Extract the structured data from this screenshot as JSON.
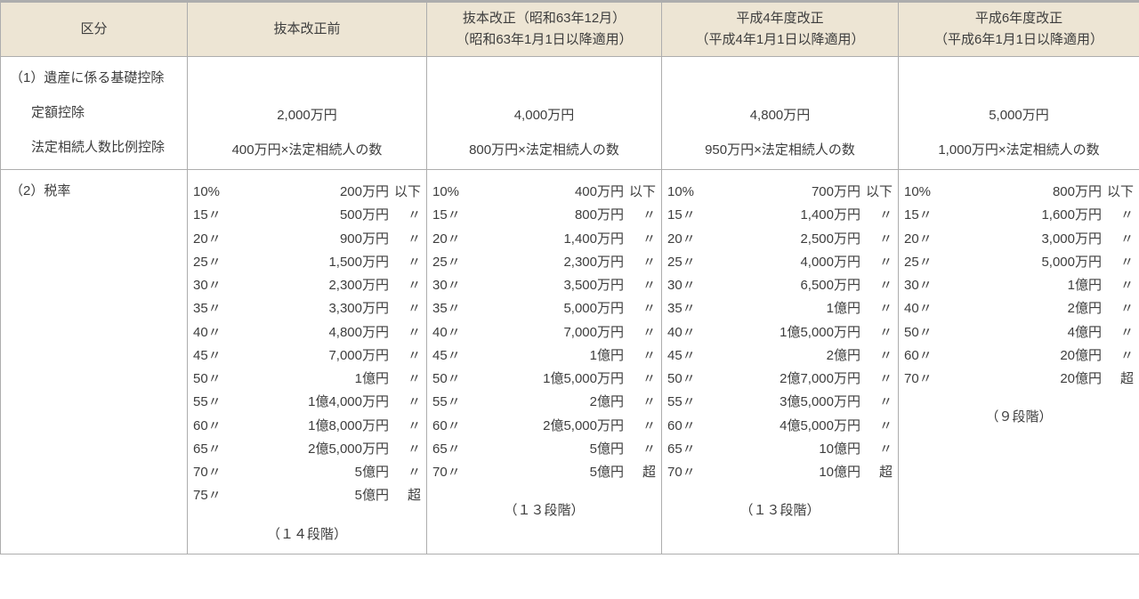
{
  "colors": {
    "header_bg": "#ede5d4",
    "border": "#adadad",
    "text": "#3d3d3d",
    "bg": "#ffffff"
  },
  "fontsize_pt": 15,
  "headers": {
    "col0": "区分",
    "col1": "抜本改正前",
    "col2_line1": "抜本改正（昭和63年12月）",
    "col2_line2": "（昭和63年1月1日以降適用）",
    "col3_line1": "平成4年度改正",
    "col3_line2": "（平成4年1月1日以降適用）",
    "col4_line1": "平成6年度改正",
    "col4_line2": "（平成6年1月1日以降適用）"
  },
  "row1": {
    "section": "（1）遺産に係る基礎控除",
    "sub1": "定額控除",
    "sub2": "法定相続人数比例控除",
    "v_fixed": {
      "c1": "2,000万円",
      "c2": "4,000万円",
      "c3": "4,800万円",
      "c4": "5,000万円"
    },
    "v_prop": {
      "c1": "400万円×法定相続人の数",
      "c2": "800万円×法定相続人の数",
      "c3": "950万円×法定相続人の数",
      "c4": "1,000万円×法定相続人の数"
    }
  },
  "row2": {
    "section": "（2）税率",
    "stages": {
      "c1": "（１４段階）",
      "c2": "（１３段階）",
      "c3": "（１３段階）",
      "c4": "（９段階）"
    },
    "brackets": {
      "c1": [
        {
          "p": "10%",
          "t": "200万円",
          "s": "以下"
        },
        {
          "p": "15〃",
          "t": "500万円",
          "s": "〃"
        },
        {
          "p": "20〃",
          "t": "900万円",
          "s": "〃"
        },
        {
          "p": "25〃",
          "t": "1,500万円",
          "s": "〃"
        },
        {
          "p": "30〃",
          "t": "2,300万円",
          "s": "〃"
        },
        {
          "p": "35〃",
          "t": "3,300万円",
          "s": "〃"
        },
        {
          "p": "40〃",
          "t": "4,800万円",
          "s": "〃"
        },
        {
          "p": "45〃",
          "t": "7,000万円",
          "s": "〃"
        },
        {
          "p": "50〃",
          "t": "1億円",
          "s": "〃"
        },
        {
          "p": "55〃",
          "t": "1億4,000万円",
          "s": "〃"
        },
        {
          "p": "60〃",
          "t": "1億8,000万円",
          "s": "〃"
        },
        {
          "p": "65〃",
          "t": "2億5,000万円",
          "s": "〃"
        },
        {
          "p": "70〃",
          "t": "5億円",
          "s": "〃"
        },
        {
          "p": "75〃",
          "t": "5億円",
          "s": "超"
        }
      ],
      "c2": [
        {
          "p": "10%",
          "t": "400万円",
          "s": "以下"
        },
        {
          "p": "15〃",
          "t": "800万円",
          "s": "〃"
        },
        {
          "p": "20〃",
          "t": "1,400万円",
          "s": "〃"
        },
        {
          "p": "25〃",
          "t": "2,300万円",
          "s": "〃"
        },
        {
          "p": "30〃",
          "t": "3,500万円",
          "s": "〃"
        },
        {
          "p": "35〃",
          "t": "5,000万円",
          "s": "〃"
        },
        {
          "p": "40〃",
          "t": "7,000万円",
          "s": "〃"
        },
        {
          "p": "45〃",
          "t": "1億円",
          "s": "〃"
        },
        {
          "p": "50〃",
          "t": "1億5,000万円",
          "s": "〃"
        },
        {
          "p": "55〃",
          "t": "2億円",
          "s": "〃"
        },
        {
          "p": "60〃",
          "t": "2億5,000万円",
          "s": "〃"
        },
        {
          "p": "65〃",
          "t": "5億円",
          "s": "〃"
        },
        {
          "p": "70〃",
          "t": "5億円",
          "s": "超"
        }
      ],
      "c3": [
        {
          "p": "10%",
          "t": "700万円",
          "s": "以下"
        },
        {
          "p": "15〃",
          "t": "1,400万円",
          "s": "〃"
        },
        {
          "p": "20〃",
          "t": "2,500万円",
          "s": "〃"
        },
        {
          "p": "25〃",
          "t": "4,000万円",
          "s": "〃"
        },
        {
          "p": "30〃",
          "t": "6,500万円",
          "s": "〃"
        },
        {
          "p": "35〃",
          "t": "1億円",
          "s": "〃"
        },
        {
          "p": "40〃",
          "t": "1億5,000万円",
          "s": "〃"
        },
        {
          "p": "45〃",
          "t": "2億円",
          "s": "〃"
        },
        {
          "p": "50〃",
          "t": "2億7,000万円",
          "s": "〃"
        },
        {
          "p": "55〃",
          "t": "3億5,000万円",
          "s": "〃"
        },
        {
          "p": "60〃",
          "t": "4億5,000万円",
          "s": "〃"
        },
        {
          "p": "65〃",
          "t": "10億円",
          "s": "〃"
        },
        {
          "p": "70〃",
          "t": "10億円",
          "s": "超"
        }
      ],
      "c4": [
        {
          "p": "10%",
          "t": "800万円",
          "s": "以下"
        },
        {
          "p": "15〃",
          "t": "1,600万円",
          "s": "〃"
        },
        {
          "p": "20〃",
          "t": "3,000万円",
          "s": "〃"
        },
        {
          "p": "25〃",
          "t": "5,000万円",
          "s": "〃"
        },
        {
          "p": "30〃",
          "t": "1億円",
          "s": "〃"
        },
        {
          "p": "40〃",
          "t": "2億円",
          "s": "〃"
        },
        {
          "p": "50〃",
          "t": "4億円",
          "s": "〃"
        },
        {
          "p": "60〃",
          "t": "20億円",
          "s": "〃"
        },
        {
          "p": "70〃",
          "t": "20億円",
          "s": "超"
        }
      ]
    }
  }
}
